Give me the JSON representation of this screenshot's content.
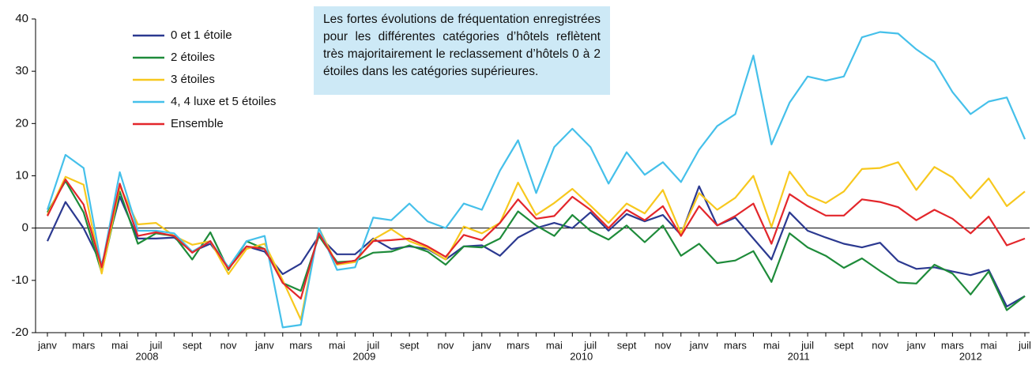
{
  "chart_data": {
    "type": "line",
    "annotation": "Les fortes évolutions de fréquentation enregistrées pour les différentes catégories d’hôtels reflètent très majoritairement le reclassement d’hôtels 0 à 2 étoiles dans les catégories supérieures.",
    "categories": [
      "janv",
      null,
      "mars",
      null,
      "mai",
      null,
      "juil",
      null,
      "sept",
      null,
      "nov",
      null,
      "janv",
      null,
      "mars",
      null,
      "mai",
      null,
      "juil",
      null,
      "sept",
      null,
      "nov",
      null,
      "janv",
      null,
      "mars",
      null,
      "mai",
      null,
      "juil",
      null,
      "sept",
      null,
      "nov",
      null,
      "janv",
      null,
      "mars",
      null,
      "mai",
      null,
      "juil",
      null,
      "sept",
      null,
      "nov",
      null,
      "janv",
      null,
      "mars",
      null,
      "mai",
      null,
      "juil"
    ],
    "groups": [
      "2008",
      "2009",
      "2010",
      "2011",
      "2012"
    ],
    "ylim": [
      -20,
      40
    ],
    "yticks": [
      -20,
      -10,
      0,
      10,
      20,
      30,
      40
    ],
    "series": [
      {
        "name": "0 et 1 étoile",
        "color": "#2b3990",
        "values": [
          -2.5,
          5,
          0,
          -7,
          6,
          -2,
          -2,
          -1.8,
          -4.5,
          -3,
          -7.5,
          -3.5,
          -4.5,
          -8.8,
          -6.8,
          -1.5,
          -5,
          -5,
          -2,
          -4,
          -3.5,
          -4,
          -6,
          -3.5,
          -3.3,
          -5.3,
          -1.8,
          0,
          1,
          0,
          3,
          -0.5,
          2.7,
          1.3,
          2.5,
          -1.3,
          8,
          0.5,
          2,
          -2,
          -6,
          3,
          -0.5,
          -1.8,
          -3,
          -3.7,
          -2.8,
          -6.3,
          -7.8,
          -7.5,
          -8.3,
          -9,
          -8,
          -15,
          -13
        ]
      },
      {
        "name": "2 étoiles",
        "color": "#1e8b3a",
        "values": [
          3,
          9,
          3,
          -8.5,
          7,
          -3,
          -1,
          -1.5,
          -6,
          -0.8,
          -8,
          -2.5,
          -4,
          -10.5,
          -12,
          -1.5,
          -6.5,
          -6.3,
          -4.7,
          -4.5,
          -3.3,
          -4.5,
          -7,
          -3.5,
          -3.7,
          -2,
          3.2,
          0.5,
          -1.5,
          2.5,
          -0.5,
          -2.2,
          0.5,
          -2.7,
          0.5,
          -5.3,
          -3,
          -6.7,
          -6.2,
          -4.4,
          -10.3,
          -1,
          -3.7,
          -5.3,
          -7.6,
          -5.8,
          -8.2,
          -10.4,
          -10.6,
          -7,
          -8.7,
          -12.7,
          -8.3,
          -15.7,
          -13
        ]
      },
      {
        "name": "3 étoiles",
        "color": "#f7c81e",
        "values": [
          2.5,
          9.8,
          8.3,
          -8.7,
          8,
          0.7,
          1,
          -1.5,
          -3.2,
          -2.5,
          -8.8,
          -4,
          -3,
          -10,
          -17.5,
          0,
          -7,
          -6.5,
          -2.2,
          -0.2,
          -2.5,
          -3.8,
          -6,
          0.3,
          -1,
          1,
          8.7,
          2.5,
          4.8,
          7.5,
          4.3,
          1,
          4.7,
          2.8,
          7.3,
          -1,
          6.7,
          3.5,
          5.8,
          10,
          0.2,
          10.8,
          6.3,
          4.8,
          7,
          11.3,
          11.5,
          12.6,
          7.3,
          11.7,
          9.7,
          5.7,
          9.5,
          4.2,
          7
        ]
      },
      {
        "name": "4, 4 luxe et 5 étoiles",
        "color": "#45c0ea",
        "values": [
          3.5,
          14,
          11.5,
          -7.5,
          10.7,
          -0.5,
          -0.5,
          -1,
          -4.5,
          -2.5,
          -7.5,
          -2.5,
          -1.5,
          -19,
          -18.5,
          0,
          -8,
          -7.5,
          2,
          1.5,
          4.7,
          1.3,
          0,
          4.7,
          3.5,
          11,
          16.8,
          6.7,
          15.5,
          19,
          15.5,
          8.5,
          14.5,
          10.2,
          12.6,
          8.8,
          15,
          19.5,
          21.8,
          33,
          16,
          24,
          29,
          28.2,
          29,
          36.5,
          37.5,
          37.2,
          34.2,
          31.8,
          26,
          21.8,
          24.2,
          25,
          17
        ]
      },
      {
        "name": "Ensemble",
        "color": "#e3262b",
        "values": [
          2.3,
          9.3,
          4.5,
          -7.5,
          8.5,
          -1.5,
          -0.8,
          -1.5,
          -4.7,
          -2.5,
          -7.8,
          -3.5,
          -4,
          -10.5,
          -13.5,
          -1,
          -6.8,
          -6.2,
          -2.5,
          -2.3,
          -2,
          -3.5,
          -5.5,
          -1.3,
          -2.3,
          1,
          5.5,
          1.8,
          2.3,
          6,
          3.5,
          0,
          3.5,
          1.5,
          4.2,
          -1.5,
          4.2,
          0.5,
          2.3,
          4.7,
          -3,
          6.5,
          4.2,
          2.4,
          2.4,
          5.5,
          5,
          4,
          1.5,
          3.5,
          1.8,
          -1,
          2.2,
          -3.3,
          -2
        ]
      }
    ]
  }
}
